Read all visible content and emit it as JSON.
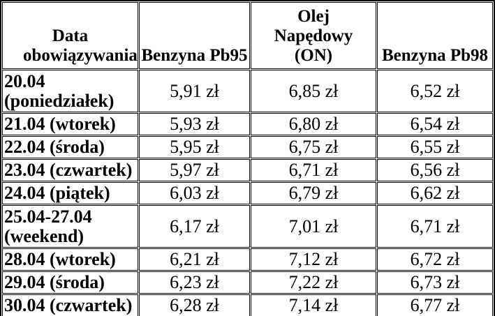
{
  "colors": {
    "background": "#ffffff",
    "border": "#000000",
    "text": "#000000"
  },
  "chart_data": {
    "type": "table",
    "columns": [
      "Data obowiązywania",
      "Benzyna Pb95",
      "Olej Napędowy (ON)",
      "Benzyna Pb98"
    ],
    "rows": [
      [
        "20.04 (poniedziałek)",
        "5,91 zł",
        "6,85 zł",
        "6,52 zł"
      ],
      [
        "21.04 (wtorek)",
        "5,93 zł",
        "6,80 zł",
        "6,54 zł"
      ],
      [
        "22.04 (środa)",
        "5,95 zł",
        "6,75 zł",
        "6,55 zł"
      ],
      [
        "23.04 (czwartek)",
        "5,97 zł",
        "6,71 zł",
        "6,56 zł"
      ],
      [
        "24.04 (piątek)",
        "6,03 zł",
        "6,79 zł",
        "6,62 zł"
      ],
      [
        "25.04-27.04 (weekend)",
        "6,17 zł",
        "7,01 zł",
        "6,71 zł"
      ],
      [
        "28.04 (wtorek)",
        "6,21 zł",
        "7,12 zł",
        "6,72 zł"
      ],
      [
        "29.04 (środa)",
        "6,23 zł",
        "7,22 zł",
        "6,73 zł"
      ],
      [
        "30.04 (czwartek)",
        "6,28 zł",
        "7,14 zł",
        "6,77 zł"
      ]
    ]
  }
}
